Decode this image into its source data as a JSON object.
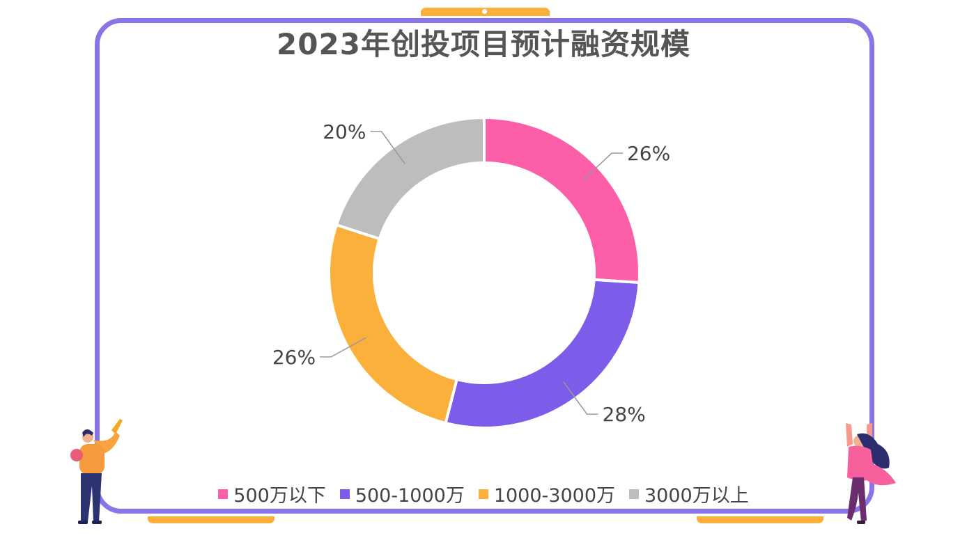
{
  "page": {
    "title": "2023年创投项目预计融资规模"
  },
  "colors": {
    "frame": "#8b74e8",
    "accent": "#fbb03b",
    "label_text": "#444444",
    "leader_line": "#999999"
  },
  "chart_data": {
    "type": "pie",
    "style": "donut",
    "title": "2023年创投项目预计融资规模",
    "legend_position": "bottom",
    "categories": [
      "500万以下",
      "500-1000万",
      "1000-3000万",
      "3000万以上"
    ],
    "values": [
      26,
      28,
      26,
      20
    ],
    "labels": [
      "26%",
      "28%",
      "26%",
      "20%"
    ],
    "colors": [
      "#fc5ea8",
      "#7c5ce8",
      "#fbb03b",
      "#bdbdbd"
    ]
  },
  "illustrations": {
    "left": "man-pointing-up",
    "right": "woman-celebrating"
  }
}
